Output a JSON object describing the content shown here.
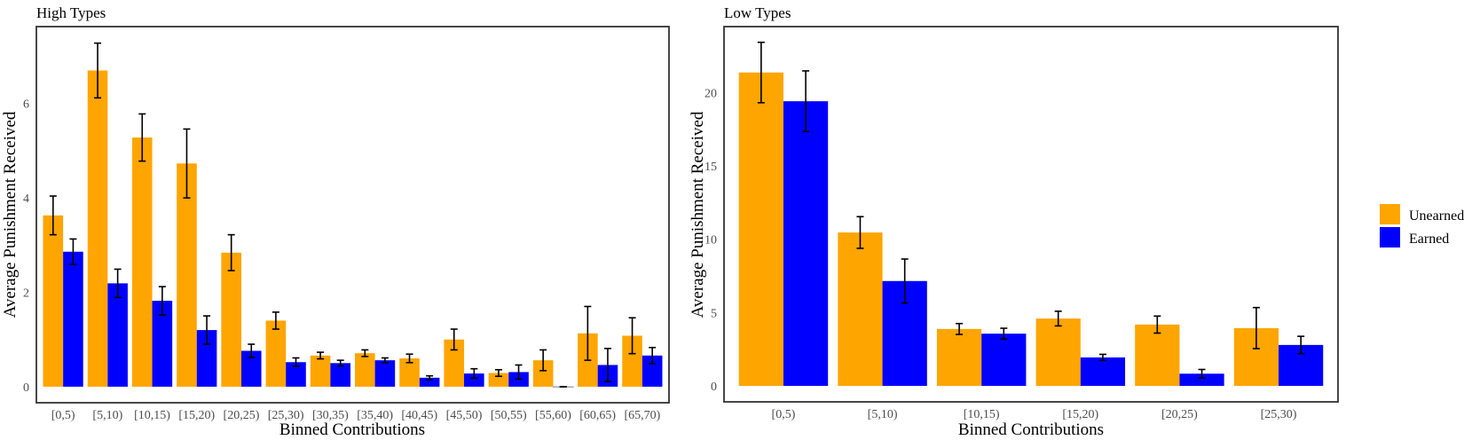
{
  "colors": {
    "Unearned": "#FFA500",
    "Earned": "#0000FF",
    "error_bar": "#000000"
  },
  "legend": {
    "position": "right",
    "entries": [
      "Unearned",
      "Earned"
    ]
  },
  "chart_data": [
    {
      "type": "bar",
      "title": "High Types",
      "xlabel": "Binned Contributions",
      "ylabel": "Average Punishment Received",
      "ylim": [
        -0.34,
        7.63
      ],
      "yticks": [
        0,
        2,
        4,
        6
      ],
      "grid": false,
      "categories": [
        "[0,5)",
        "[5,10)",
        "[10,15)",
        "[15,20)",
        "[20,25)",
        "[25,30)",
        "[30,35)",
        "[35,40)",
        "[40,45)",
        "[45,50)",
        "[50,55)",
        "[55,60)",
        "[60,65)",
        "[65,70)"
      ],
      "series": [
        {
          "name": "Unearned",
          "values": [
            3.63,
            6.7,
            5.28,
            4.73,
            2.84,
            1.4,
            0.66,
            0.71,
            0.6,
            1.0,
            0.29,
            0.56,
            1.13,
            1.08
          ],
          "errors": [
            0.41,
            0.58,
            0.5,
            0.73,
            0.38,
            0.18,
            0.07,
            0.07,
            0.09,
            0.22,
            0.07,
            0.22,
            0.57,
            0.38
          ]
        },
        {
          "name": "Earned",
          "values": [
            2.86,
            2.19,
            1.82,
            1.2,
            0.76,
            0.52,
            0.5,
            0.56,
            0.19,
            0.28,
            0.31,
            0.0,
            0.46,
            0.66
          ],
          "errors": [
            0.27,
            0.3,
            0.3,
            0.3,
            0.14,
            0.09,
            0.06,
            0.05,
            0.04,
            0.1,
            0.15,
            0.0,
            0.35,
            0.17
          ]
        }
      ]
    },
    {
      "type": "bar",
      "title": "Low Types",
      "xlabel": "Binned Contributions",
      "ylabel": "Average Punishment Received",
      "ylim": [
        -1.09,
        24.5
      ],
      "yticks": [
        0,
        5,
        10,
        15,
        20
      ],
      "grid": false,
      "categories": [
        "[0,5)",
        "[5,10)",
        "[10,15)",
        "[15,20)",
        "[20,25)",
        "[25,30)"
      ],
      "series": [
        {
          "name": "Unearned",
          "values": [
            21.37,
            10.46,
            3.88,
            4.59,
            4.18,
            3.94
          ],
          "errors": [
            2.06,
            1.08,
            0.37,
            0.5,
            0.58,
            1.4
          ]
        },
        {
          "name": "Earned",
          "values": [
            19.41,
            7.15,
            3.56,
            1.94,
            0.83,
            2.79
          ],
          "errors": [
            2.07,
            1.5,
            0.37,
            0.21,
            0.29,
            0.59
          ]
        }
      ]
    }
  ]
}
